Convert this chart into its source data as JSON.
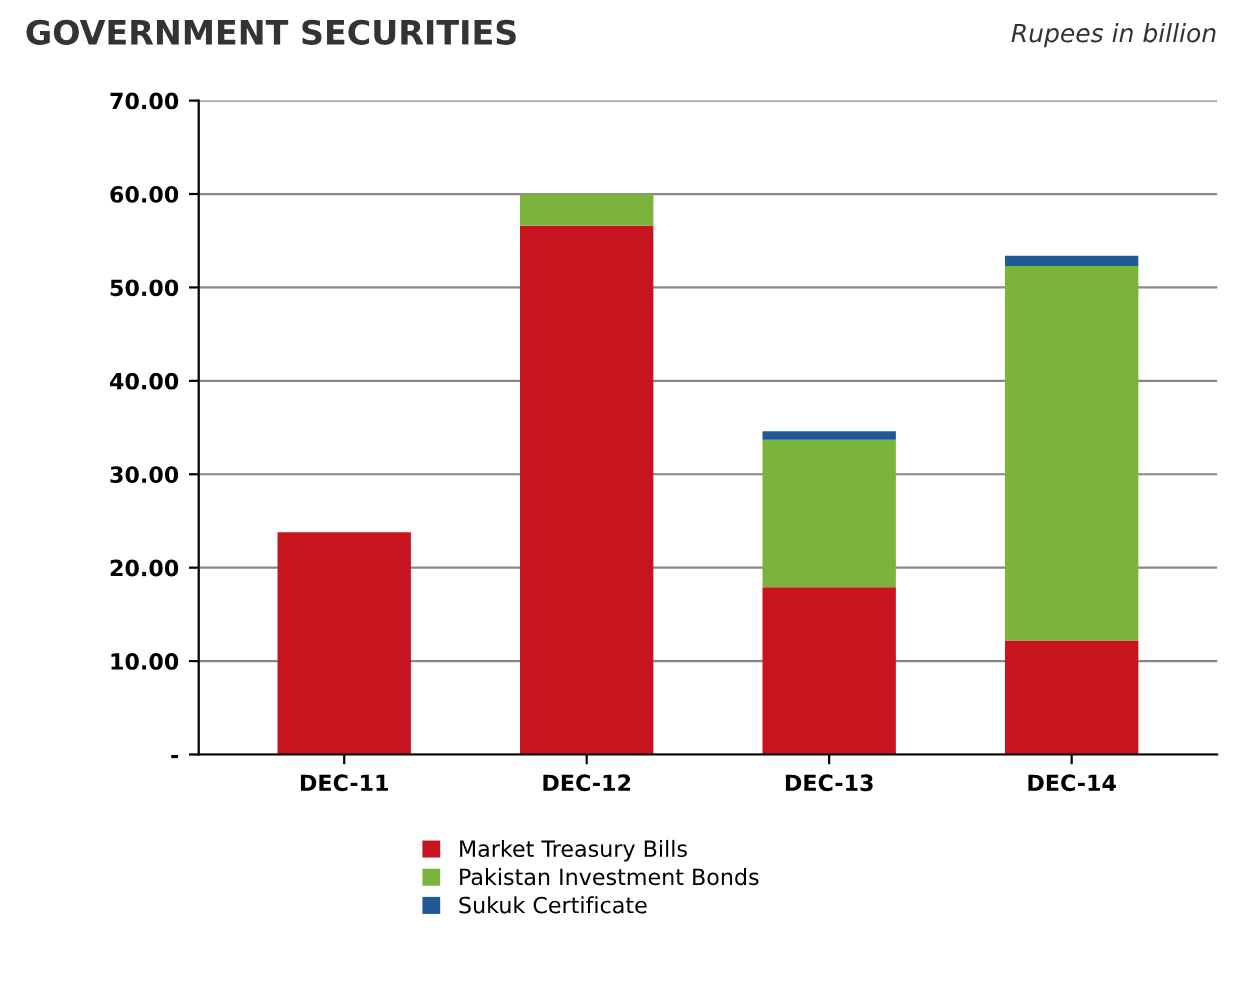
{
  "chart_data": {
    "type": "bar",
    "title": "GOVERNMENT SECURITIES",
    "subtitle": "Rupees in billion",
    "stacked": true,
    "categories": [
      "DEC-11",
      "DEC-12",
      "DEC-13",
      "DEC-14"
    ],
    "series": [
      {
        "name": "Market Treasury Bills",
        "color": "#c8141e",
        "values": [
          23.8,
          56.6,
          17.9,
          12.2
        ]
      },
      {
        "name": "Pakistan Investment Bonds",
        "color": "#7ab43c",
        "values": [
          0,
          3.4,
          15.8,
          40.1
        ]
      },
      {
        "name": "Sukuk Certificate",
        "color": "#1f5a96",
        "values": [
          0,
          0,
          0.9,
          1.1
        ]
      }
    ],
    "ylim": [
      0,
      70
    ],
    "yticks": [
      {
        "value": 0,
        "label": "-"
      },
      {
        "value": 10,
        "label": "10.00"
      },
      {
        "value": 20,
        "label": "20.00"
      },
      {
        "value": 30,
        "label": "30.00"
      },
      {
        "value": 40,
        "label": "40.00"
      },
      {
        "value": 50,
        "label": "50.00"
      },
      {
        "value": 60,
        "label": "60.00"
      },
      {
        "value": 70,
        "label": "70.00"
      }
    ],
    "grid": "y",
    "legend": "bottom"
  }
}
